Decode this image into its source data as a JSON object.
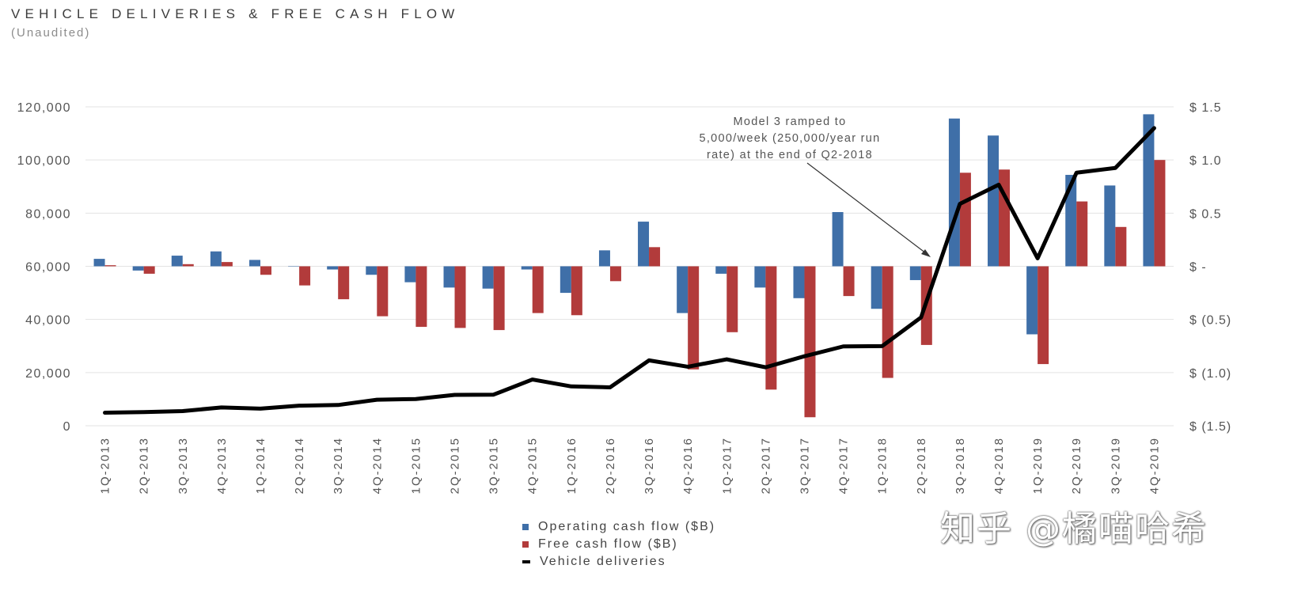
{
  "title": "VEHICLE DELIVERIES & FREE CASH FLOW",
  "subtitle": "(Unaudited)",
  "watermark": "知乎 @橘喵哈希",
  "colors": {
    "operating": "#3f6fa8",
    "free": "#b23b3b",
    "deliveries": "#000000",
    "grid": "#e3e3e3"
  },
  "chart_data": {
    "type": "bar",
    "categories": [
      "1Q-2013",
      "2Q-2013",
      "3Q-2013",
      "4Q-2013",
      "1Q-2014",
      "2Q-2014",
      "3Q-2014",
      "4Q-2014",
      "1Q-2015",
      "2Q-2015",
      "3Q-2015",
      "4Q-2015",
      "1Q-2016",
      "2Q-2016",
      "3Q-2016",
      "4Q-2016",
      "1Q-2017",
      "2Q-2017",
      "3Q-2017",
      "4Q-2017",
      "1Q-2018",
      "2Q-2018",
      "3Q-2018",
      "4Q-2018",
      "1Q-2019",
      "2Q-2019",
      "3Q-2019",
      "4Q-2019"
    ],
    "left_axis": {
      "min": 0,
      "max": 120000,
      "ticks": [
        0,
        20000,
        40000,
        60000,
        80000,
        100000,
        120000
      ],
      "tick_labels": [
        "0",
        "20,000",
        "40,000",
        "60,000",
        "80,000",
        "100,000",
        "120,000"
      ]
    },
    "right_axis": {
      "min": -1.5,
      "max": 1.5,
      "ticks": [
        -1.5,
        -1.0,
        -0.5,
        0,
        0.5,
        1.0,
        1.5
      ],
      "tick_labels": [
        "$ (1.5)",
        "$ (1.0)",
        "$ (0.5)",
        "$ -",
        "$ 0.5",
        "$ 1.0",
        "$ 1.5"
      ]
    },
    "grid": true,
    "legend_position": "bottom",
    "series": [
      {
        "name": "Operating cash flow ($B)",
        "axis": "right",
        "kind": "bar",
        "values": [
          0.07,
          -0.04,
          0.1,
          0.14,
          0.06,
          0.0,
          -0.03,
          -0.08,
          -0.15,
          -0.2,
          -0.21,
          -0.03,
          -0.25,
          0.15,
          0.42,
          -0.44,
          -0.07,
          -0.2,
          -0.3,
          0.51,
          -0.4,
          -0.13,
          1.39,
          1.23,
          -0.64,
          0.86,
          0.76,
          1.43
        ]
      },
      {
        "name": "Free cash flow ($B)",
        "axis": "right",
        "kind": "bar",
        "values": [
          0.01,
          -0.07,
          0.02,
          0.04,
          -0.08,
          -0.18,
          -0.31,
          -0.47,
          -0.57,
          -0.58,
          -0.6,
          -0.44,
          -0.46,
          -0.14,
          0.18,
          -0.97,
          -0.62,
          -1.16,
          -1.42,
          -0.28,
          -1.05,
          -0.74,
          0.88,
          0.91,
          -0.92,
          0.61,
          0.37,
          1.0
        ]
      },
      {
        "name": "Vehicle deliveries",
        "axis": "left",
        "kind": "line",
        "values": [
          4900,
          5150,
          5500,
          6900,
          6450,
          7550,
          7800,
          9800,
          10050,
          11600,
          11700,
          17400,
          14800,
          14450,
          24600,
          22200,
          25000,
          22000,
          26150,
          29850,
          29950,
          40750,
          83500,
          90700,
          63000,
          95200,
          97000,
          112000
        ]
      }
    ],
    "annotation": {
      "lines": [
        "Model 3 ramped to",
        "5,000/week (250,000/year run",
        "rate) at the end of Q2-2018"
      ]
    }
  }
}
